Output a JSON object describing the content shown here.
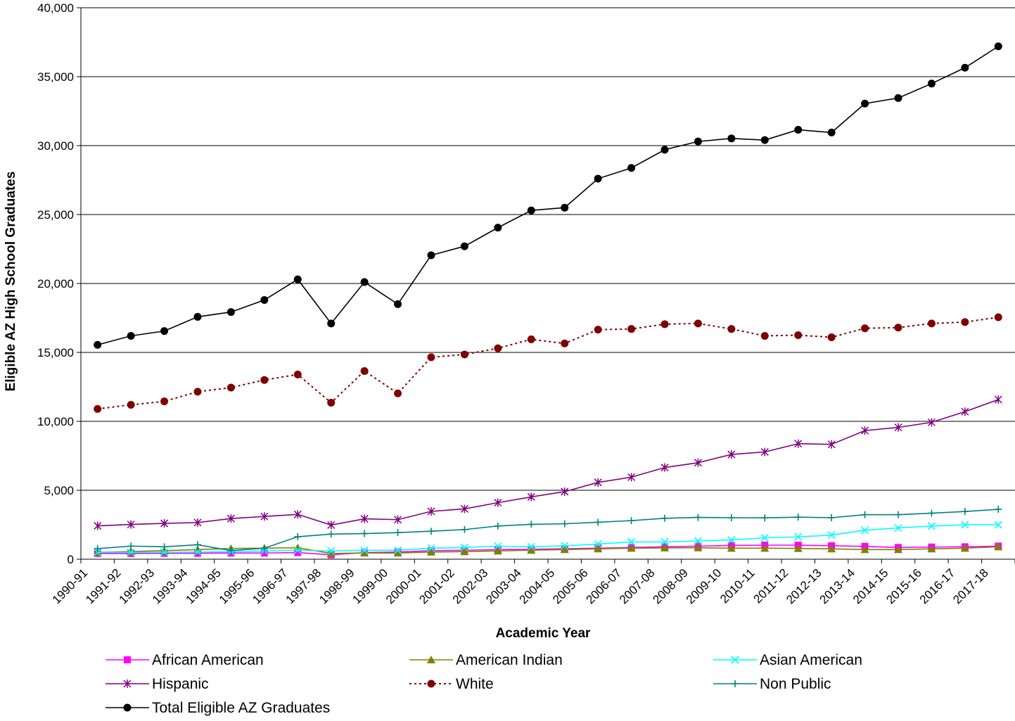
{
  "chart_data": {
    "type": "line",
    "title": "",
    "xlabel": "Academic Year",
    "ylabel": "Eligible AZ High School Graduates",
    "ylim": [
      0,
      40000
    ],
    "yticks": [
      0,
      5000,
      10000,
      15000,
      20000,
      25000,
      30000,
      35000,
      40000
    ],
    "ytick_labels": [
      "0",
      "5,000",
      "10,000",
      "15,000",
      "20,000",
      "25,000",
      "30,000",
      "35,000",
      "40,000"
    ],
    "grid": "horizontal",
    "legend_position": "bottom",
    "categories": [
      "1990-91",
      "1991-92",
      "1992-93",
      "1993-94",
      "1994-95",
      "1995-96",
      "1996-97",
      "1997-98",
      "1998-99",
      "1999-00",
      "2000-01",
      "2001-02",
      "2002-03",
      "2003-04",
      "2004-05",
      "2005-06",
      "2006-07",
      "2007-08",
      "2008-09",
      "2009-10",
      "2010-11",
      "2011-12",
      "2012-13",
      "2013-14",
      "2014-15",
      "2015-16",
      "2016-17",
      "2017-18"
    ],
    "series": [
      {
        "name": "African American",
        "color": "#FF00FF",
        "marker": "square",
        "dash": "solid",
        "values": [
          420,
          420,
          430,
          430,
          450,
          450,
          480,
          320,
          480,
          520,
          620,
          650,
          700,
          720,
          760,
          800,
          850,
          900,
          950,
          1000,
          1020,
          1020,
          980,
          930,
          850,
          880,
          900,
          950
        ]
      },
      {
        "name": "American Indian",
        "color": "#808000",
        "marker": "triangle",
        "dash": "solid",
        "values": [
          500,
          560,
          620,
          700,
          780,
          800,
          830,
          420,
          450,
          450,
          520,
          550,
          600,
          650,
          700,
          750,
          800,
          820,
          830,
          800,
          800,
          780,
          750,
          700,
          700,
          750,
          800,
          900
        ]
      },
      {
        "name": "Asian American",
        "color": "#00FFFF",
        "marker": "x",
        "dash": "solid",
        "values": [
          500,
          500,
          500,
          520,
          540,
          600,
          650,
          600,
          650,
          650,
          800,
          850,
          950,
          900,
          970,
          1100,
          1250,
          1250,
          1320,
          1400,
          1550,
          1620,
          1750,
          2100,
          2270,
          2400,
          2500,
          2500
        ]
      },
      {
        "name": "Hispanic",
        "color": "#800080",
        "marker": "star",
        "dash": "solid",
        "values": [
          2420,
          2520,
          2600,
          2660,
          2950,
          3100,
          3250,
          2480,
          2930,
          2870,
          3470,
          3650,
          4100,
          4520,
          4900,
          5570,
          5950,
          6650,
          7000,
          7600,
          7780,
          8380,
          8330,
          9330,
          9560,
          9930,
          10700,
          11580
        ]
      },
      {
        "name": "White",
        "color": "#800000",
        "marker": "circle",
        "dash": "dotted",
        "values": [
          10900,
          11200,
          11450,
          12150,
          12450,
          13000,
          13400,
          11350,
          13650,
          12030,
          14650,
          14850,
          15300,
          15950,
          15650,
          16650,
          16700,
          17050,
          17100,
          16700,
          16200,
          16250,
          16100,
          16750,
          16800,
          17100,
          17200,
          17550
        ]
      },
      {
        "name": "Non Public",
        "color": "#008080",
        "marker": "plus",
        "dash": "solid",
        "values": [
          770,
          950,
          900,
          1050,
          620,
          800,
          1630,
          1820,
          1860,
          1930,
          2030,
          2150,
          2410,
          2530,
          2570,
          2680,
          2800,
          2970,
          3030,
          3010,
          3000,
          3050,
          3010,
          3230,
          3230,
          3340,
          3460,
          3620
        ]
      },
      {
        "name": "Total Eligible AZ Graduates",
        "color": "#000000",
        "marker": "circle",
        "dash": "solid",
        "values": [
          15550,
          16200,
          16550,
          17580,
          17930,
          18800,
          20300,
          17100,
          20100,
          18500,
          22050,
          22700,
          24050,
          25300,
          25500,
          27600,
          28380,
          29700,
          30300,
          30520,
          30400,
          31150,
          30950,
          33050,
          33450,
          34500,
          35650,
          37200
        ]
      }
    ]
  }
}
